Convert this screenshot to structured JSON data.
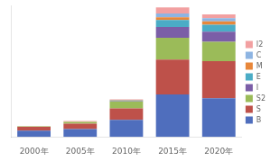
{
  "chart_data": {
    "type": "bar",
    "stacked": true,
    "categories": [
      "2000年",
      "2005年",
      "2010年",
      "2015年",
      "2020年"
    ],
    "series": [
      {
        "name": "B",
        "color": "#4F6EBD",
        "values": [
          0.8,
          1.0,
          2.2,
          5.5,
          5.0
        ]
      },
      {
        "name": "S",
        "color": "#BE514A",
        "values": [
          0.5,
          0.7,
          1.5,
          4.5,
          4.8
        ]
      },
      {
        "name": "S2",
        "color": "#9BBB59",
        "values": [
          0.05,
          0.25,
          0.9,
          2.8,
          2.5
        ]
      },
      {
        "name": "I",
        "color": "#7B5EA7",
        "values": [
          0.0,
          0.0,
          0.05,
          1.4,
          1.3
        ]
      },
      {
        "name": "E",
        "color": "#4BACC6",
        "values": [
          0.0,
          0.0,
          0.05,
          0.9,
          0.9
        ]
      },
      {
        "name": "M",
        "color": "#E8873A",
        "values": [
          0.0,
          0.0,
          0.05,
          0.35,
          0.45
        ]
      },
      {
        "name": "C",
        "color": "#8DB4E2",
        "values": [
          0.0,
          0.0,
          0.05,
          0.5,
          0.4
        ]
      },
      {
        "name": "I2",
        "color": "#F2A0A1",
        "values": [
          0.05,
          0.1,
          0.05,
          0.8,
          0.5
        ]
      }
    ],
    "ylim": [
      0,
      17
    ],
    "grid": false,
    "legend": "right",
    "tick_labels": "x"
  }
}
